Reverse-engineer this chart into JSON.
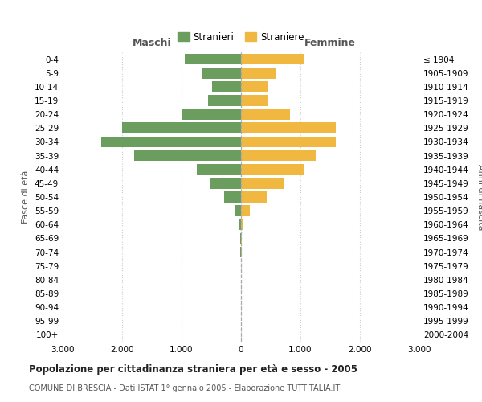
{
  "age_groups": [
    "0-4",
    "5-9",
    "10-14",
    "15-19",
    "20-24",
    "25-29",
    "30-34",
    "35-39",
    "40-44",
    "45-49",
    "50-54",
    "55-59",
    "60-64",
    "65-69",
    "70-74",
    "75-79",
    "80-84",
    "85-89",
    "90-94",
    "95-99",
    "100+"
  ],
  "birth_years": [
    "2000-2004",
    "1995-1999",
    "1990-1994",
    "1985-1989",
    "1980-1984",
    "1975-1979",
    "1970-1974",
    "1965-1969",
    "1960-1964",
    "1955-1959",
    "1950-1954",
    "1945-1949",
    "1940-1944",
    "1935-1939",
    "1930-1934",
    "1925-1929",
    "1920-1924",
    "1915-1919",
    "1910-1914",
    "1905-1909",
    "≤ 1904"
  ],
  "maschi": [
    950,
    650,
    480,
    560,
    1000,
    2000,
    2350,
    1800,
    750,
    530,
    280,
    100,
    30,
    20,
    10,
    5,
    0,
    0,
    0,
    0,
    0
  ],
  "femmine": [
    1050,
    600,
    450,
    450,
    830,
    1600,
    1600,
    1250,
    1050,
    730,
    430,
    150,
    40,
    20,
    10,
    5,
    0,
    0,
    0,
    0,
    0
  ],
  "color_maschi": "#6b9e5e",
  "color_femmine": "#f0b840",
  "title": "Popolazione per cittadinanza straniera per età e sesso - 2005",
  "subtitle": "COMUNE DI BRESCIA - Dati ISTAT 1° gennaio 2005 - Elaborazione TUTTITALIA.IT",
  "ylabel_left": "Fasce di età",
  "ylabel_right": "Anni di nascita",
  "xlabel_left": "Maschi",
  "xlabel_right": "Femmine",
  "legend_maschi": "Stranieri",
  "legend_femmine": "Straniere",
  "xlim": 3000,
  "xtick_vals": [
    -3000,
    -2000,
    -1000,
    0,
    1000,
    2000,
    3000
  ],
  "xtick_labels": [
    "3.000",
    "2.000",
    "1.000",
    "0",
    "1.000",
    "2.000",
    "3.000"
  ],
  "background_color": "#ffffff",
  "grid_color": "#cccccc"
}
